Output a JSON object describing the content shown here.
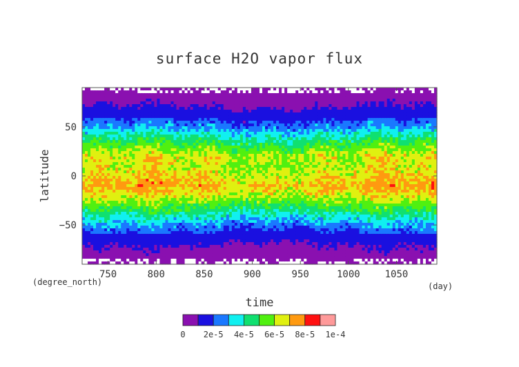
{
  "chart_data": {
    "type": "heatmap",
    "title": "surface H2O vapor flux",
    "xlabel": "time",
    "ylabel": "latitude",
    "x_unit": "(day)",
    "y_unit": "(degree_north)",
    "xlim": [
      723,
      1092
    ],
    "ylim": [
      -90,
      90
    ],
    "x_ticks": [
      "750",
      "800",
      "850",
      "900",
      "950",
      "1000",
      "1050"
    ],
    "y_ticks": [
      "50",
      "0",
      "−50"
    ],
    "x_tick_values": [
      750,
      800,
      850,
      900,
      950,
      1000,
      1050
    ],
    "y_tick_values": [
      50,
      0,
      -50
    ],
    "colorbar": {
      "levels": [
        0,
        1e-05,
        2e-05,
        3e-05,
        4e-05,
        5e-05,
        6e-05,
        7e-05,
        8e-05,
        9e-05,
        0.0001
      ],
      "labels": [
        "0",
        "2e-5",
        "4e-5",
        "6e-5",
        "8e-5",
        "1e-4"
      ],
      "colors": [
        "#8a10b0",
        "#1a10e0",
        "#1a78ff",
        "#10f0f0",
        "#10e070",
        "#50f010",
        "#e0f010",
        "#ff9a10",
        "#ff1010",
        "#ff9a9a"
      ]
    },
    "latitude_profile": {
      "lat": [
        -90,
        -80,
        -70,
        -60,
        -50,
        -40,
        -30,
        -20,
        -10,
        0,
        10,
        20,
        30,
        40,
        50,
        60,
        70,
        80,
        90
      ],
      "value": [
        2e-06,
        6e-06,
        1e-05,
        1.6e-05,
        2.6e-05,
        3.9e-05,
        5.2e-05,
        6.4e-05,
        7.2e-05,
        6.6e-05,
        6.2e-05,
        6.4e-05,
        5.3e-05,
        4e-05,
        2.6e-05,
        1.6e-05,
        1e-05,
        6e-06,
        2e-06
      ]
    },
    "grid": false,
    "legend_placement": "bottom"
  }
}
